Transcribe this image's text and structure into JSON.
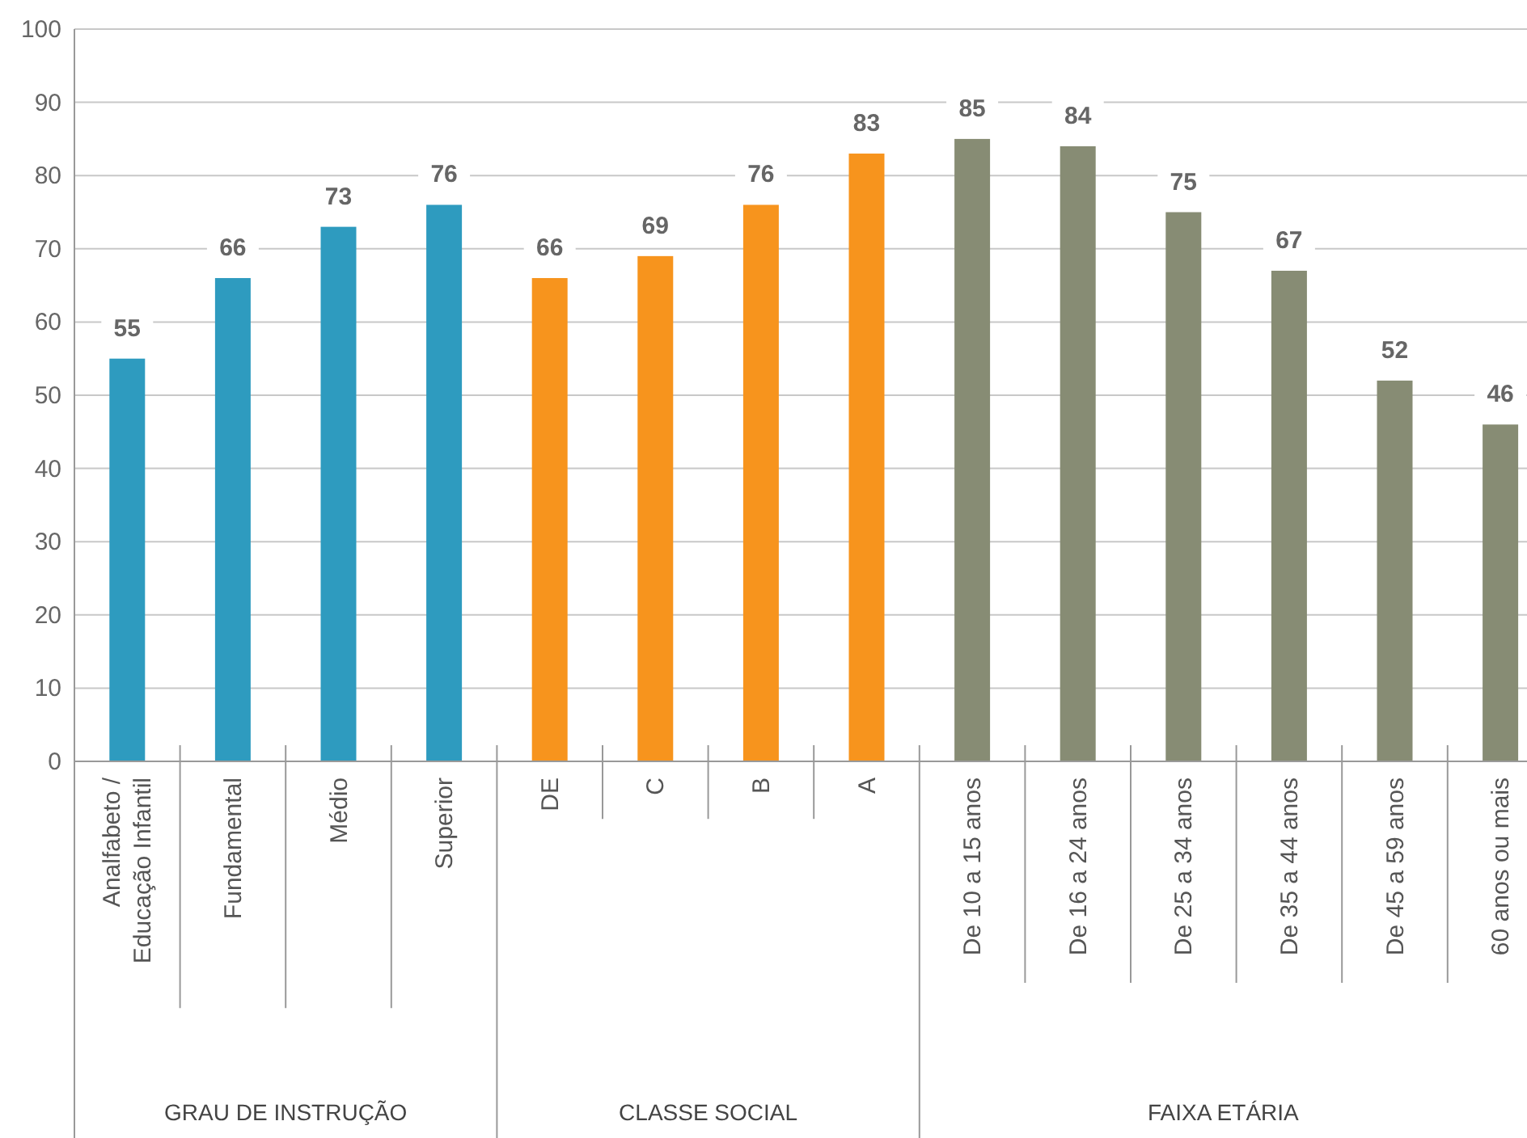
{
  "chart_data": {
    "type": "bar",
    "categories": [
      "Analfabeto / Educação Infantil",
      "Fundamental",
      "Médio",
      "Superior",
      "DE",
      "C",
      "B",
      "A",
      "De 10 a 15 anos",
      "De 16 a 24 anos",
      "De 25 a 34 anos",
      "De 35 a 44 anos",
      "De 45 a 59 anos",
      "60 anos ou mais"
    ],
    "values": [
      55,
      66,
      73,
      76,
      66,
      69,
      76,
      83,
      85,
      84,
      75,
      67,
      52,
      46
    ],
    "colors": [
      "#2e9bbf",
      "#2e9bbf",
      "#2e9bbf",
      "#2e9bbf",
      "#f7941d",
      "#f7941d",
      "#f7941d",
      "#f7941d",
      "#878c74",
      "#878c74",
      "#878c74",
      "#878c74",
      "#878c74",
      "#878c74"
    ],
    "ylim": [
      0,
      100
    ],
    "yticks": [
      0,
      10,
      20,
      30,
      40,
      50,
      60,
      70,
      80,
      90,
      100
    ],
    "grid": "y",
    "data_labels": true,
    "annotations": [
      "GRAU DE INSTRUÇÃO",
      "CLASSE SOCIAL",
      "FAIXA ETÁRIA"
    ]
  }
}
